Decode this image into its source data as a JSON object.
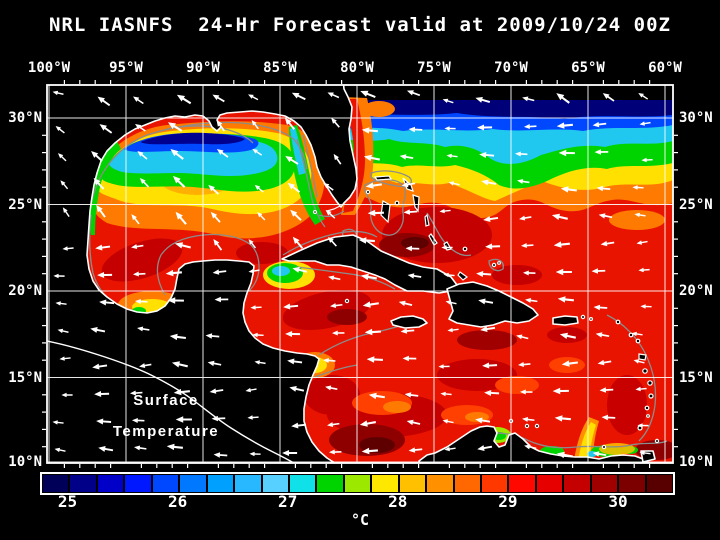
{
  "title": "NRL IASNFS  24-Hr Forecast valid at 2009/10/24 00Z",
  "axes": {
    "lon_labels": [
      "100°W",
      "95°W",
      "90°W",
      "85°W",
      "80°W",
      "75°W",
      "70°W",
      "65°W",
      "60°W"
    ],
    "lat_labels": [
      "30°N",
      "25°N",
      "20°N",
      "15°N",
      "10°N"
    ]
  },
  "map": {
    "label_line1": "Surface",
    "label_line2": "Temperature",
    "region": "Gulf of Mexico and Caribbean Sea / Intra-Americas Sea"
  },
  "colorbar": {
    "unit": "°C",
    "tick_labels": [
      "25",
      "26",
      "27",
      "28",
      "29",
      "30"
    ],
    "tick_values": [
      25,
      26,
      27,
      28,
      29,
      30
    ],
    "value_min": 24.75,
    "value_max": 30.5,
    "cell_step_c": 0.25,
    "cell_colors": [
      "#000058",
      "#000088",
      "#0000C8",
      "#0018FF",
      "#0048FF",
      "#0078FF",
      "#00A0FF",
      "#28B8FF",
      "#58D0FF",
      "#10E0E8",
      "#00D400",
      "#9CE800",
      "#FFE800",
      "#FFC000",
      "#FF9000",
      "#FF6800",
      "#FF3800",
      "#FF0800",
      "#E60000",
      "#C40000",
      "#A00000",
      "#7C0000",
      "#580000"
    ]
  },
  "colors": {
    "background": "#000000",
    "frame": "#FFFFFF",
    "grid": "#FFFFFF",
    "coastline": "#FFFFFF",
    "land": "#000000",
    "bathymetry_contours": "#8C8C8C",
    "wind_vectors": "#FFFFFF"
  }
}
